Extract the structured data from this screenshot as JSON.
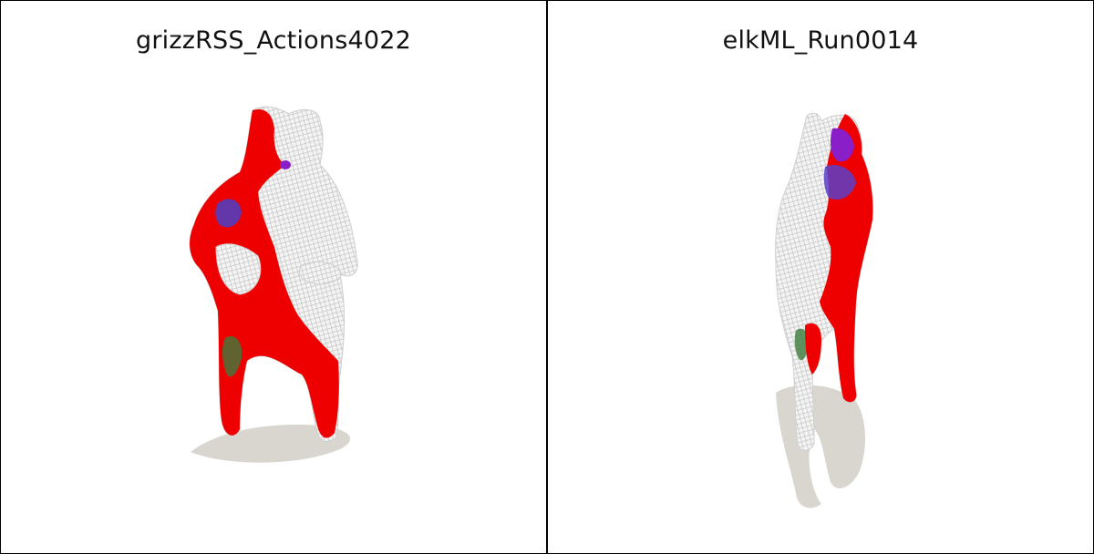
{
  "panels": [
    {
      "title": "grizzRSS_Actions4022"
    },
    {
      "title": "elkML_Run0014"
    }
  ],
  "colors": {
    "background": "#ffffff",
    "border": "#000000",
    "shadow": "#d9d6cf",
    "mesh": "#e6e6e6",
    "highlight_red": "#ee0000",
    "highlight_purple": "#8a1ec8",
    "highlight_blue": "#4a40c8",
    "highlight_green": "#3c7a3c"
  }
}
